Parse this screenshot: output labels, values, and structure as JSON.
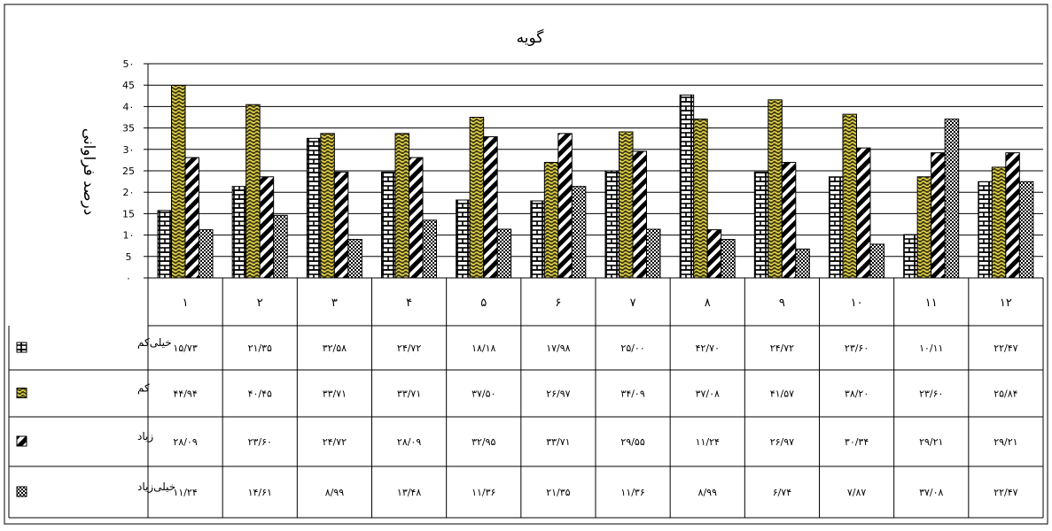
{
  "chart_data": {
    "type": "bar",
    "title": "گویه",
    "xlabel": "",
    "ylabel": "درصد فراوانی",
    "ylim": [
      0,
      50
    ],
    "yticks": [
      0,
      5,
      10,
      15,
      20,
      25,
      30,
      35,
      40,
      45,
      50
    ],
    "ytick_labels": [
      "۰",
      "5",
      "1۰",
      "15",
      "2۰",
      "25",
      "3۰",
      "35",
      "4۰",
      "45",
      "5۰"
    ],
    "grid": true,
    "legend_position": "left (data table)",
    "categories": [
      "۱",
      "۲",
      "۳",
      "۴",
      "۵",
      "۶",
      "۷",
      "۸",
      "۹",
      "۱۰",
      "۱۱",
      "۱۲"
    ],
    "series": [
      {
        "name": "خیلی‌کم",
        "pattern": "brick",
        "values": [
          15.73,
          21.35,
          32.58,
          24.72,
          18.18,
          17.98,
          25.0,
          42.7,
          24.72,
          23.6,
          10.11,
          22.47
        ],
        "labels": [
          "۱۵/۷۳",
          "۲۱/۳۵",
          "۳۲/۵۸",
          "۲۴/۷۲",
          "۱۸/۱۸",
          "۱۷/۹۸",
          "۲۵/۰۰",
          "۴۲/۷۰",
          "۲۴/۷۲",
          "۲۳/۶۰",
          "۱۰/۱۱",
          "۲۲/۴۷"
        ]
      },
      {
        "name": "کم",
        "pattern": "yellow-wave",
        "values": [
          44.94,
          40.45,
          33.71,
          33.71,
          37.5,
          26.97,
          34.09,
          37.08,
          41.57,
          38.2,
          23.6,
          25.84
        ],
        "labels": [
          "۴۴/۹۴",
          "۴۰/۴۵",
          "۳۳/۷۱",
          "۳۳/۷۱",
          "۳۷/۵۰",
          "۲۶/۹۷",
          "۳۴/۰۹",
          "۳۷/۰۸",
          "۴۱/۵۷",
          "۳۸/۲۰",
          "۲۳/۶۰",
          "۲۵/۸۴"
        ]
      },
      {
        "name": "زیاد",
        "pattern": "diagonal",
        "values": [
          28.09,
          23.6,
          24.72,
          28.09,
          32.95,
          33.71,
          29.55,
          11.24,
          26.97,
          30.34,
          29.21,
          29.21
        ],
        "labels": [
          "۲۸/۰۹",
          "۲۳/۶۰",
          "۲۴/۷۲",
          "۲۸/۰۹",
          "۳۲/۹۵",
          "۳۳/۷۱",
          "۲۹/۵۵",
          "۱۱/۲۴",
          "۲۶/۹۷",
          "۳۰/۳۴",
          "۲۹/۲۱",
          "۲۹/۲۱"
        ]
      },
      {
        "name": "خیلی‌زیاد",
        "pattern": "checker",
        "values": [
          11.24,
          14.61,
          8.99,
          13.48,
          11.36,
          21.35,
          11.36,
          8.99,
          6.74,
          7.87,
          37.08,
          22.47
        ],
        "labels": [
          "۱۱/۲۴",
          "۱۴/۶۱",
          "۸/۹۹",
          "۱۳/۴۸",
          "۱۱/۳۶",
          "۲۱/۳۵",
          "۱۱/۳۶",
          "۸/۹۹",
          "۶/۷۴",
          "۷/۸۷",
          "۳۷/۰۸",
          "۲۲/۴۷"
        ]
      }
    ]
  }
}
